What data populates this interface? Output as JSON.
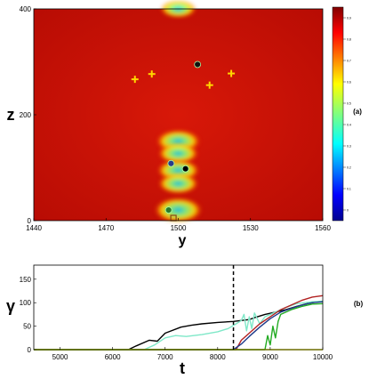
{
  "chart_data": [
    {
      "type": "heatmap",
      "panel_label": "(a)",
      "xlabel": "y",
      "ylabel": "z",
      "xlim": [
        1440,
        1560
      ],
      "ylim": [
        0,
        400
      ],
      "x_ticks": [
        1440,
        1470,
        1500,
        1530,
        1560
      ],
      "y_ticks": [
        0,
        200,
        400
      ],
      "colormap": "jet",
      "colorbar_ticks": [
        "0",
        "0.1",
        "0.2",
        "0.3",
        "0.4",
        "0.5",
        "0.6",
        "0.7",
        "0.8",
        "0.9"
      ],
      "hotspots": [
        {
          "y": 1500,
          "z": 400,
          "level": 0.3
        },
        {
          "y": 1500,
          "z": 150,
          "level": 0.5
        },
        {
          "y": 1500,
          "z": 127,
          "level": 0.4
        },
        {
          "y": 1500,
          "z": 95,
          "level": 0.45
        },
        {
          "y": 1500,
          "z": 70,
          "level": 0.4
        },
        {
          "y": 1500,
          "z": 20,
          "level": 0.6
        }
      ],
      "markers": [
        {
          "shape": "plus",
          "color": "#ffd700",
          "points": [
            [
              1482,
              267
            ],
            [
              1489,
              277
            ],
            [
              1513,
              256
            ],
            [
              1522,
              278
            ]
          ]
        },
        {
          "shape": "dot",
          "color": "#111111",
          "points": [
            [
              1508,
              295
            ]
          ]
        },
        {
          "shape": "dot",
          "color": "#2a3a8c",
          "points": [
            [
              1497,
              108
            ]
          ]
        },
        {
          "shape": "dot",
          "color": "#000000",
          "points": [
            [
              1503,
              98
            ]
          ]
        },
        {
          "shape": "dot",
          "color": "#2b7a2b",
          "points": [
            [
              1496,
              20
            ]
          ]
        },
        {
          "shape": "square",
          "color": "#8b4513",
          "points": [
            [
              1498,
              5
            ]
          ]
        }
      ]
    },
    {
      "type": "line",
      "panel_label": "(b)",
      "xlabel": "t",
      "ylabel": "γ",
      "xlim": [
        4500,
        10000
      ],
      "ylim": [
        0,
        180
      ],
      "x_ticks": [
        5000,
        6000,
        7000,
        8000,
        9000,
        10000
      ],
      "y_ticks": [
        0,
        50,
        100,
        150
      ],
      "vline_x": 8300,
      "series": [
        {
          "color": "#000000",
          "points": [
            [
              4500,
              0
            ],
            [
              6300,
              0
            ],
            [
              6450,
              8
            ],
            [
              6700,
              20
            ],
            [
              6850,
              18
            ],
            [
              7000,
              35
            ],
            [
              7300,
              48
            ],
            [
              7500,
              52
            ],
            [
              7700,
              55
            ],
            [
              8000,
              58
            ],
            [
              8300,
              60
            ],
            [
              8600,
              64
            ],
            [
              8700,
              68
            ],
            [
              8900,
              75
            ],
            [
              9100,
              80
            ],
            [
              9300,
              85
            ],
            [
              9500,
              92
            ],
            [
              9700,
              98
            ],
            [
              9900,
              102
            ],
            [
              10000,
              103
            ]
          ]
        },
        {
          "color": "#7fe8c8",
          "points": [
            [
              4500,
              0
            ],
            [
              6600,
              0
            ],
            [
              6800,
              10
            ],
            [
              7000,
              25
            ],
            [
              7200,
              30
            ],
            [
              7400,
              28
            ],
            [
              7700,
              32
            ],
            [
              8000,
              38
            ],
            [
              8200,
              45
            ],
            [
              8350,
              55
            ],
            [
              8450,
              62
            ],
            [
              8500,
              75
            ],
            [
              8550,
              40
            ],
            [
              8600,
              70
            ],
            [
              8650,
              45
            ],
            [
              8700,
              78
            ],
            [
              8800,
              55
            ],
            [
              8900,
              70
            ],
            [
              9100,
              80
            ],
            [
              9300,
              90
            ],
            [
              9500,
              98
            ],
            [
              9800,
              102
            ],
            [
              10000,
              103
            ]
          ]
        },
        {
          "color": "#b22222",
          "points": [
            [
              4500,
              0
            ],
            [
              8350,
              0
            ],
            [
              8450,
              20
            ],
            [
              8600,
              35
            ],
            [
              8800,
              55
            ],
            [
              9000,
              70
            ],
            [
              9200,
              85
            ],
            [
              9400,
              95
            ],
            [
              9600,
              105
            ],
            [
              9800,
              112
            ],
            [
              10000,
              115
            ]
          ]
        },
        {
          "color": "#1e3a8a",
          "points": [
            [
              4500,
              0
            ],
            [
              8300,
              0
            ],
            [
              8450,
              12
            ],
            [
              8600,
              28
            ],
            [
              8800,
              48
            ],
            [
              9000,
              66
            ],
            [
              9200,
              80
            ],
            [
              9400,
              88
            ],
            [
              9600,
              95
            ],
            [
              9800,
              100
            ],
            [
              10000,
              102
            ]
          ]
        },
        {
          "color": "#22aa22",
          "points": [
            [
              4500,
              0
            ],
            [
              8900,
              0
            ],
            [
              8950,
              30
            ],
            [
              9000,
              10
            ],
            [
              9050,
              50
            ],
            [
              9100,
              25
            ],
            [
              9150,
              60
            ],
            [
              9200,
              75
            ],
            [
              9400,
              85
            ],
            [
              9600,
              92
            ],
            [
              9800,
              97
            ],
            [
              10000,
              98
            ]
          ]
        },
        {
          "color": "#e8e800",
          "points": [
            [
              4500,
              0
            ],
            [
              10000,
              0
            ]
          ]
        }
      ]
    }
  ]
}
